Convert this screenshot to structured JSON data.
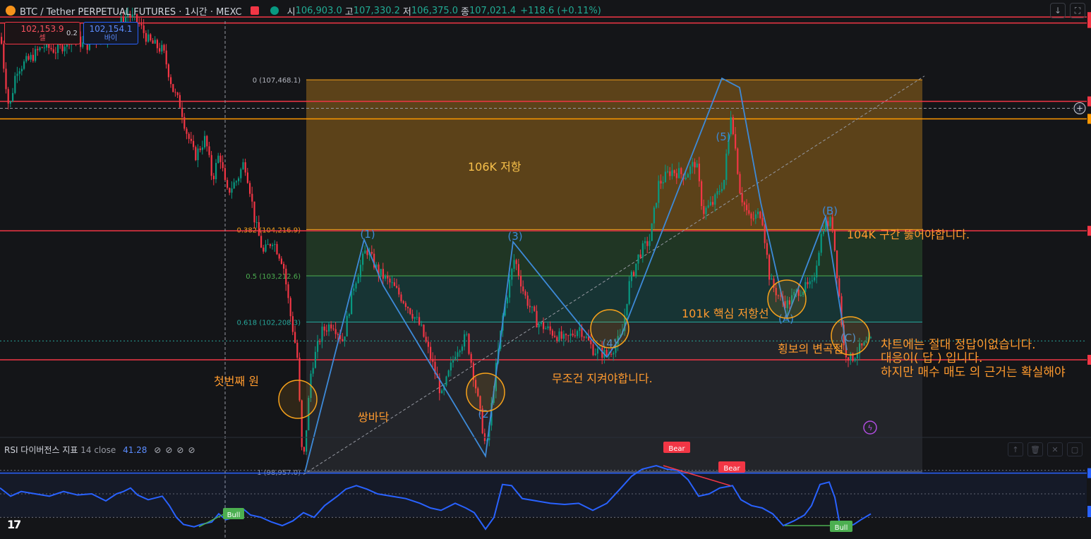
{
  "header": {
    "symbol": "BTC / Tether PERPETUAL FUTURES · 1시간 · MEXC",
    "open_label": "시",
    "open": "106,903.0",
    "high_label": "고",
    "high": "107,330.2",
    "low_label": "저",
    "low": "106,375.0",
    "close_label": "종",
    "close": "107,021.4",
    "change": "+118.6 (+0.11%)"
  },
  "trade": {
    "sell_price": "102,153.9",
    "sell_label": "셀",
    "spread": "0.2",
    "buy_price": "102,154.1",
    "buy_label": "바이"
  },
  "rsi_header": {
    "name": "RSI 다이버전스 지표",
    "params": "14 close",
    "value": "41.28"
  },
  "chart_data": {
    "type": "candlestick",
    "interval": "1h",
    "y_range": [
      97500,
      109200
    ],
    "candle_path": [
      [
        0,
        108400
      ],
      [
        4,
        107800
      ],
      [
        12,
        106800
      ],
      [
        22,
        107700
      ],
      [
        40,
        107900
      ],
      [
        60,
        108200
      ],
      [
        80,
        108100
      ],
      [
        100,
        108400
      ],
      [
        120,
        108200
      ],
      [
        140,
        108400
      ],
      [
        160,
        108500
      ],
      [
        180,
        108900
      ],
      [
        195,
        108700
      ],
      [
        210,
        108300
      ],
      [
        230,
        108100
      ],
      [
        245,
        107200
      ],
      [
        255,
        106900
      ],
      [
        262,
        106400
      ],
      [
        275,
        105800
      ],
      [
        290,
        106200
      ],
      [
        300,
        105300
      ],
      [
        310,
        105900
      ],
      [
        320,
        105000
      ],
      [
        335,
        105300
      ],
      [
        345,
        105700
      ],
      [
        352,
        105200
      ],
      [
        360,
        104400
      ],
      [
        372,
        103700
      ],
      [
        385,
        104000
      ],
      [
        400,
        103500
      ],
      [
        410,
        102400
      ],
      [
        420,
        101500
      ],
      [
        428,
        99000
      ],
      [
        440,
        101200
      ],
      [
        455,
        102000
      ],
      [
        470,
        102200
      ],
      [
        485,
        101800
      ],
      [
        500,
        103000
      ],
      [
        518,
        103800
      ],
      [
        535,
        103300
      ],
      [
        555,
        103000
      ],
      [
        575,
        102600
      ],
      [
        595,
        102100
      ],
      [
        610,
        101400
      ],
      [
        625,
        100600
      ],
      [
        645,
        101600
      ],
      [
        660,
        101900
      ],
      [
        672,
        100900
      ],
      [
        688,
        99400
      ],
      [
        700,
        101000
      ],
      [
        712,
        102400
      ],
      [
        728,
        103600
      ],
      [
        742,
        102800
      ],
      [
        760,
        102200
      ],
      [
        780,
        102000
      ],
      [
        800,
        101800
      ],
      [
        820,
        102100
      ],
      [
        840,
        101600
      ],
      [
        860,
        101500
      ],
      [
        880,
        101900
      ],
      [
        890,
        103000
      ],
      [
        905,
        103700
      ],
      [
        920,
        104000
      ],
      [
        932,
        105200
      ],
      [
        950,
        105500
      ],
      [
        970,
        105400
      ],
      [
        985,
        105700
      ],
      [
        995,
        104600
      ],
      [
        1010,
        104800
      ],
      [
        1025,
        105300
      ],
      [
        1035,
        106800
      ],
      [
        1048,
        105000
      ],
      [
        1062,
        104400
      ],
      [
        1078,
        104600
      ],
      [
        1090,
        103100
      ],
      [
        1105,
        102700
      ],
      [
        1115,
        102600
      ],
      [
        1130,
        102900
      ],
      [
        1150,
        103000
      ],
      [
        1165,
        104300
      ],
      [
        1178,
        104400
      ],
      [
        1188,
        102800
      ],
      [
        1195,
        101600
      ],
      [
        1205,
        101400
      ],
      [
        1215,
        101600
      ],
      [
        1225,
        101700
      ],
      [
        1234,
        101800
      ]
    ],
    "fib_levels": [
      {
        "label": "0 (107,468.1)",
        "ratio": 0,
        "price": 107468.1
      },
      {
        "label": "0.382 (104,216.9)",
        "ratio": 0.382,
        "price": 104216.9
      },
      {
        "label": "0.5 (103,212.6)",
        "ratio": 0.5,
        "price": 103212.6
      },
      {
        "label": "0.618 (102,208.3)",
        "ratio": 0.618,
        "price": 102208.3
      },
      {
        "label": "1 (98,957.0)",
        "ratio": 1,
        "price": 98957.0
      }
    ],
    "horizontal_levels": [
      108830,
      108700,
      107000,
      106620,
      104190,
      101390,
      98930
    ],
    "wave_labels": [
      "(1)",
      "(2)",
      "(3)",
      "(4)",
      "(5)",
      "(A)",
      "(B)",
      "(C)"
    ],
    "annotations": [
      "106K 저항",
      "104K 구간 뚫어야합니다.",
      "101k 핵심 저항선",
      "횡보의 변곡점",
      "무조건 지켜야합니다.",
      "첫번째 원",
      "쌍바닥",
      "차트에는 절대 정답이없습니다.",
      "대응이( 답 ) 입니다.",
      "하지만 매수 매도 의 근거는 확실해야"
    ],
    "rsi": {
      "range": [
        20,
        80
      ],
      "path": [
        [
          0,
          55
        ],
        [
          15,
          48
        ],
        [
          30,
          52
        ],
        [
          50,
          50
        ],
        [
          70,
          48
        ],
        [
          90,
          52
        ],
        [
          110,
          49
        ],
        [
          130,
          50
        ],
        [
          150,
          44
        ],
        [
          165,
          50
        ],
        [
          175,
          52
        ],
        [
          185,
          55
        ],
        [
          195,
          49
        ],
        [
          210,
          45
        ],
        [
          230,
          48
        ],
        [
          240,
          40
        ],
        [
          250,
          30
        ],
        [
          260,
          24
        ],
        [
          275,
          22
        ],
        [
          285,
          24
        ],
        [
          300,
          26
        ],
        [
          310,
          33
        ],
        [
          320,
          28
        ],
        [
          332,
          30
        ],
        [
          345,
          37
        ],
        [
          355,
          32
        ],
        [
          370,
          30
        ],
        [
          385,
          26
        ],
        [
          400,
          23
        ],
        [
          415,
          27
        ],
        [
          430,
          34
        ],
        [
          445,
          30
        ],
        [
          460,
          40
        ],
        [
          478,
          48
        ],
        [
          490,
          54
        ],
        [
          505,
          57
        ],
        [
          520,
          54
        ],
        [
          535,
          50
        ],
        [
          555,
          48
        ],
        [
          575,
          46
        ],
        [
          595,
          42
        ],
        [
          610,
          38
        ],
        [
          625,
          36
        ],
        [
          645,
          42
        ],
        [
          660,
          38
        ],
        [
          672,
          34
        ],
        [
          688,
          20
        ],
        [
          700,
          30
        ],
        [
          712,
          58
        ],
        [
          725,
          57
        ],
        [
          740,
          46
        ],
        [
          760,
          44
        ],
        [
          780,
          42
        ],
        [
          800,
          41
        ],
        [
          820,
          42
        ],
        [
          840,
          36
        ],
        [
          860,
          42
        ],
        [
          880,
          55
        ],
        [
          895,
          65
        ],
        [
          910,
          71
        ],
        [
          930,
          74
        ],
        [
          945,
          71
        ],
        [
          960,
          70
        ],
        [
          975,
          62
        ],
        [
          990,
          48
        ],
        [
          1005,
          50
        ],
        [
          1020,
          55
        ],
        [
          1038,
          57
        ],
        [
          1050,
          45
        ],
        [
          1065,
          40
        ],
        [
          1080,
          38
        ],
        [
          1095,
          33
        ],
        [
          1110,
          23
        ],
        [
          1125,
          27
        ],
        [
          1140,
          32
        ],
        [
          1150,
          40
        ],
        [
          1162,
          58
        ],
        [
          1175,
          60
        ],
        [
          1183,
          47
        ],
        [
          1190,
          24
        ],
        [
          1200,
          22
        ],
        [
          1210,
          24
        ],
        [
          1220,
          28
        ],
        [
          1234,
          33
        ]
      ],
      "divergences": [
        {
          "kind": "Bull",
          "color": "#4caf50"
        },
        {
          "kind": "Bear",
          "color": "#f23645"
        },
        {
          "kind": "Bear",
          "color": "#f23645"
        },
        {
          "kind": "Bull",
          "color": "#4caf50"
        }
      ]
    }
  },
  "colors": {
    "bull": "#089981",
    "bear": "#f23645",
    "wave": "#3d8ad8",
    "fib_top": "#f7a21b",
    "annot": "#ff9a2e",
    "level_red": "#f23645",
    "level_orange": "#ff9800"
  },
  "brand": "17"
}
